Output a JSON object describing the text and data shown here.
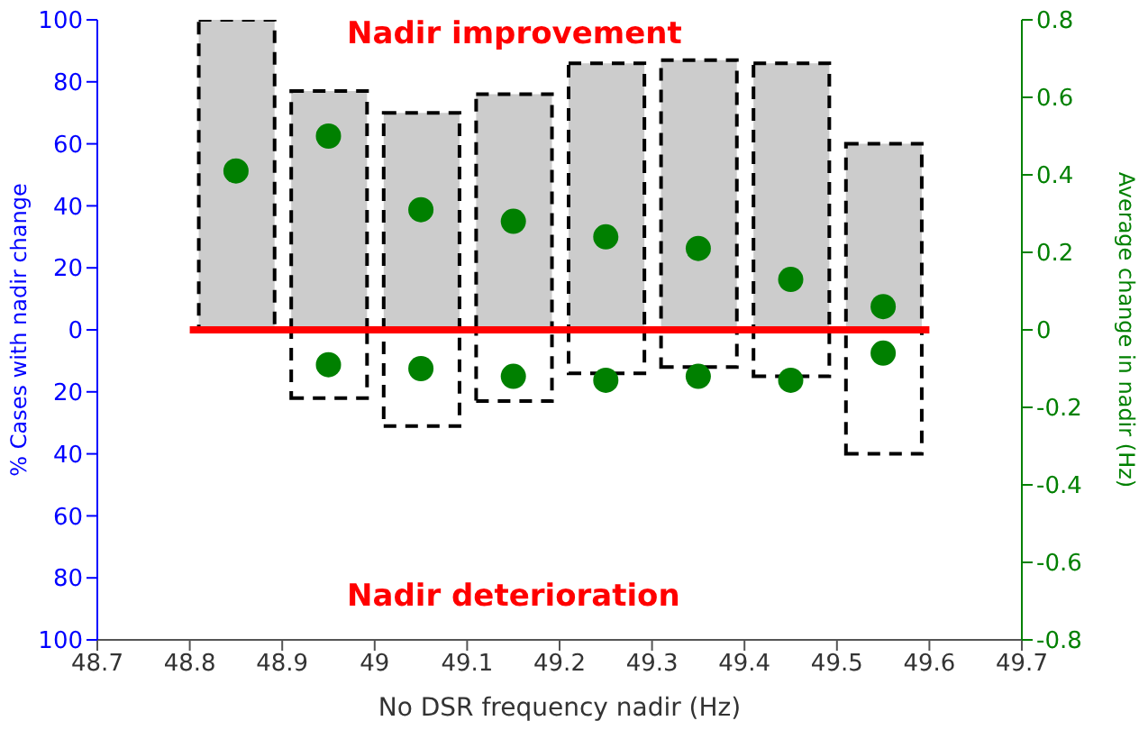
{
  "chart_data": {
    "type": "bar",
    "stacked": true,
    "xlabel": "No DSR frequency nadir (Hz)",
    "ylabel": "% Cases with nadir change",
    "y2label": "Average change in nadir (Hz)",
    "x": [
      48.85,
      48.95,
      49.05,
      49.15,
      49.25,
      49.35,
      49.45,
      49.55
    ],
    "series": [
      {
        "color": "#cccccc",
        "values": [
          100,
          77,
          70,
          76,
          86,
          87,
          86,
          60
        ]
      },
      {
        "color": "#ffffff",
        "values": [
          null,
          -22,
          -31,
          -23,
          -14,
          -12,
          -15,
          -40
        ]
      },
      {
        "type": "scatter",
        "axis": "y2",
        "color": "#008000",
        "values": [
          0.41,
          0.5,
          0.31,
          0.28,
          0.24,
          0.21,
          0.13,
          0.06
        ]
      },
      {
        "type": "scatter",
        "axis": "y2",
        "color": "#008000",
        "values": [
          null,
          -0.09,
          -0.1,
          -0.12,
          -0.13,
          -0.12,
          -0.13,
          -0.06
        ]
      }
    ],
    "xlim": [
      48.7,
      49.7
    ],
    "xticks": [
      48.7,
      48.8,
      48.9,
      49,
      49.1,
      49.2,
      49.3,
      49.4,
      49.5,
      49.6,
      49.7
    ],
    "ylim": [
      -100,
      100
    ],
    "yticks": [
      {
        "value": -100,
        "label": "100"
      },
      {
        "value": -80,
        "label": "80"
      },
      {
        "value": -60,
        "label": "60"
      },
      {
        "value": -40,
        "label": "40"
      },
      {
        "value": -20,
        "label": "20"
      },
      0,
      20,
      40,
      60,
      80,
      100
    ],
    "y2lim": [
      -0.8,
      0.8
    ],
    "y2ticks": [
      -0.8,
      -0.6,
      -0.4,
      -0.2,
      0,
      0.2,
      0.4,
      0.6,
      0.8
    ],
    "ref_lines": [
      {
        "axis": "y",
        "value": 0,
        "color": "#ff0000"
      }
    ],
    "annotations": [
      "Nadir improvement",
      "Nadir deterioration"
    ],
    "line_style": "dashed",
    "marker": "circle"
  }
}
